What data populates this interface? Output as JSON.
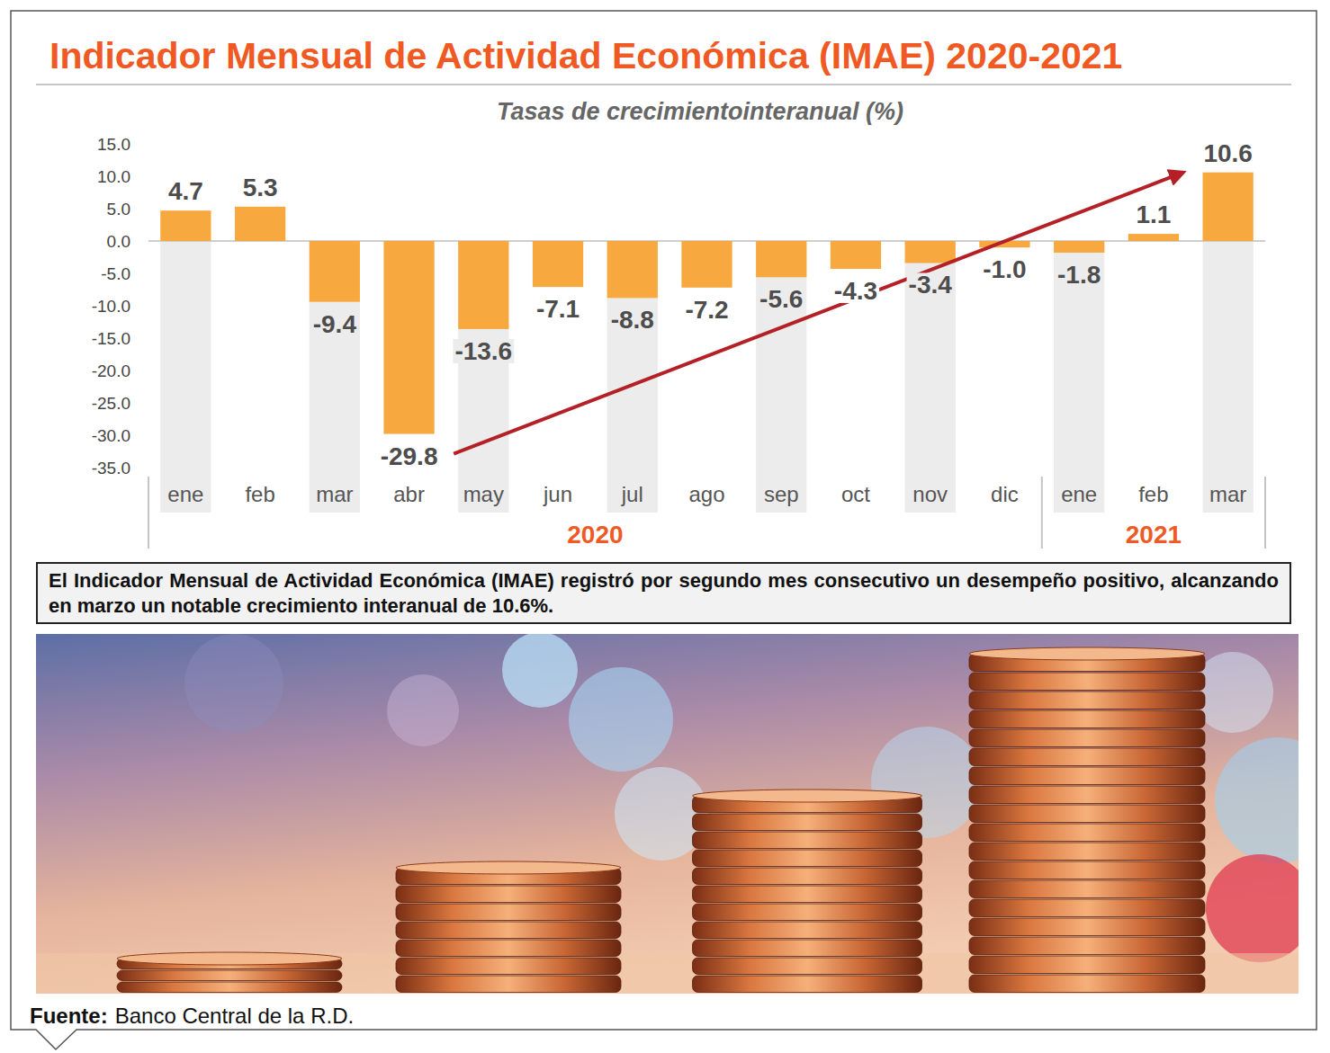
{
  "chart_data": {
    "type": "bar",
    "title": "Indicador Mensual de Actividad Económica (IMAE) 2020-2021",
    "subtitle": "Tasas de crecimientointeranual (%)",
    "categories": [
      "ene",
      "feb",
      "mar",
      "abr",
      "may",
      "jun",
      "jul",
      "ago",
      "sep",
      "oct",
      "nov",
      "dic",
      "ene",
      "feb",
      "mar"
    ],
    "groups": [
      {
        "label": "2020",
        "count": 12
      },
      {
        "label": "2021",
        "count": 3
      }
    ],
    "values": [
      4.7,
      5.3,
      -9.4,
      -29.8,
      -13.6,
      -7.1,
      -8.8,
      -7.2,
      -5.6,
      -4.3,
      -3.4,
      -1.0,
      -1.8,
      1.1,
      10.6
    ],
    "value_labels": [
      "4.7",
      "5.3",
      "-9.4",
      "-29.8",
      "-13.6",
      "-7.1",
      "-8.8",
      "-7.2",
      "-5.6",
      "-4.3",
      "-3.4",
      "-1.0",
      "-1.8",
      "1.1",
      "10.6"
    ],
    "color": "#f7a93f",
    "ylim": [
      -35,
      15
    ],
    "yticks": [
      {
        "value": -35,
        "label": "-35.0"
      },
      {
        "value": -30,
        "label": "-30.0"
      },
      {
        "value": -25,
        "label": "-25.0"
      },
      {
        "value": -20,
        "label": "-20.0"
      },
      {
        "value": -15,
        "label": "-15.0"
      },
      {
        "value": -10,
        "label": "-10.0"
      },
      {
        "value": -5,
        "label": "-5.0"
      },
      {
        "value": 0,
        "label": "0.0"
      },
      {
        "value": 5,
        "label": "5.0"
      },
      {
        "value": 10,
        "label": "10.0"
      },
      {
        "value": 15,
        "label": "15.0"
      }
    ],
    "grid": false,
    "data_labels": true,
    "annotation": "El Indicador Mensual de Actividad Económica (IMAE) registró por segundo mes consecutivo un desempeño positivo, alcanzando en marzo un notable crecimiento interanual de 10.6%.",
    "source_label": "Fuente:",
    "source": "Banco Central de la R.D."
  }
}
